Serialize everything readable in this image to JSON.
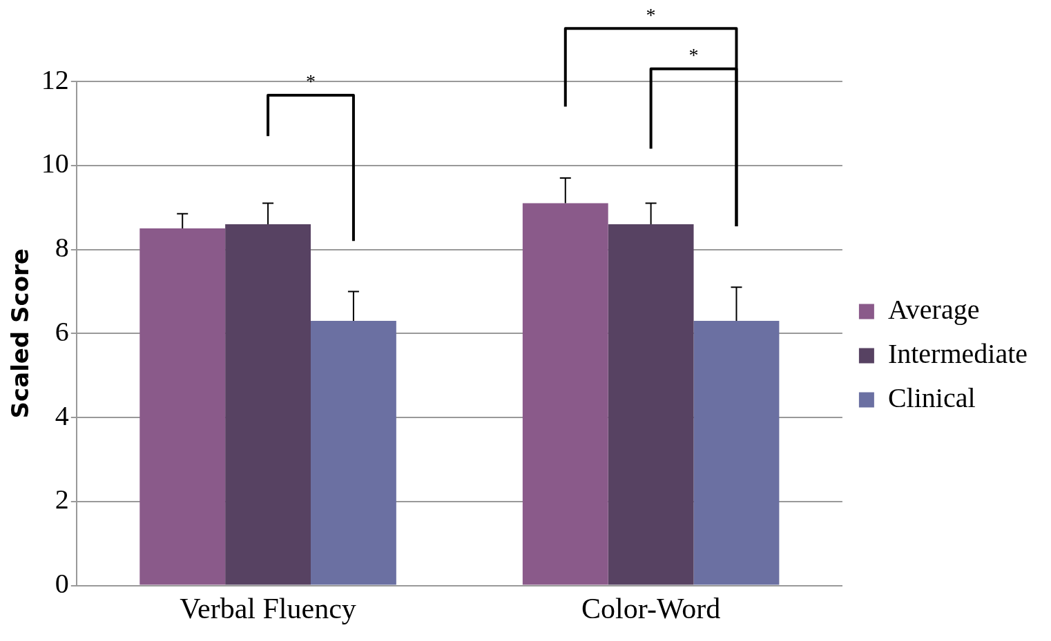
{
  "chart_data": {
    "type": "bar",
    "ylabel": "Scaled Score",
    "categories": [
      "Verbal Fluency",
      "Color-Word"
    ],
    "series": [
      {
        "name": "Average",
        "color": "#8a5a8a",
        "values": [
          8.5,
          9.1
        ],
        "errors": [
          [
            8.5,
            8.85
          ],
          [
            9.1,
            9.7
          ]
        ]
      },
      {
        "name": "Intermediate",
        "color": "#574262",
        "values": [
          8.6,
          8.6
        ],
        "errors": [
          [
            8.6,
            9.1
          ],
          [
            8.6,
            9.1
          ]
        ]
      },
      {
        "name": "Clinical",
        "color": "#6b70a2",
        "values": [
          6.3,
          6.3
        ],
        "errors": [
          [
            6.3,
            7.0
          ],
          [
            6.3,
            7.1
          ]
        ]
      }
    ],
    "ylim": [
      0,
      12
    ],
    "yticks": [
      0,
      2,
      4,
      6,
      8,
      10,
      12
    ],
    "grid": "y",
    "legend": "right",
    "annotations": [
      "*",
      "*",
      "*"
    ]
  }
}
